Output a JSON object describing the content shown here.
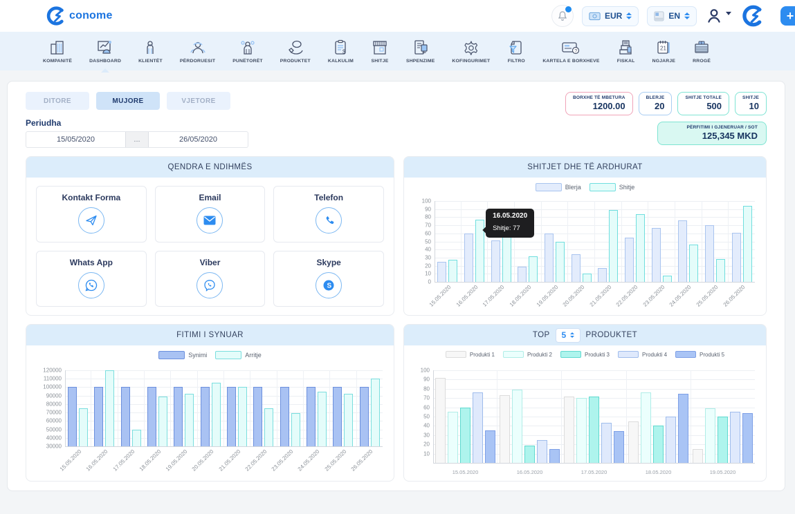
{
  "header": {
    "brand": "conome",
    "currency": "EUR",
    "language": "EN",
    "add_button": "+"
  },
  "nav": {
    "items": [
      {
        "label": "KOMPANITË",
        "icon": "building"
      },
      {
        "label": "DASHBOARD",
        "icon": "dashboard",
        "active": true
      },
      {
        "label": "KLIENTËT",
        "icon": "client"
      },
      {
        "label": "PËRDORUESIT",
        "icon": "users"
      },
      {
        "label": "PUNËTORËT",
        "icon": "workers"
      },
      {
        "label": "PRODUKTET",
        "icon": "products"
      },
      {
        "label": "KALKULIM",
        "icon": "calculation"
      },
      {
        "label": "SHITJE",
        "icon": "shop"
      },
      {
        "label": "SHPENZIME",
        "icon": "expenses"
      },
      {
        "label": "KOFINGURIMET",
        "icon": "gear"
      },
      {
        "label": "FILTRO",
        "icon": "filter"
      },
      {
        "label": "KARTELA E BORXHEVE",
        "icon": "debt-card"
      },
      {
        "label": "FISKAL",
        "icon": "fiscal"
      },
      {
        "label": "NGJARJE",
        "icon": "calendar"
      },
      {
        "label": "RROGË",
        "icon": "salary"
      }
    ]
  },
  "filters": {
    "tabs": [
      {
        "label": "DITORE",
        "active": false
      },
      {
        "label": "MUJORE",
        "active": true
      },
      {
        "label": "VJETORE",
        "active": false
      }
    ],
    "period_label": "Periudha",
    "date_from": "15/05/2020",
    "date_to": "26/05/2020",
    "range_button": "..."
  },
  "stats": {
    "boxes": [
      {
        "label": "BORXHE TË MBETURA",
        "value": "1200.00",
        "color": "#f0a3b8"
      },
      {
        "label": "BLERJE",
        "value": "20",
        "color": "#a9cdf2"
      },
      {
        "label": "SHITJE TOTALE",
        "value": "500",
        "color": "#7fe4d4"
      },
      {
        "label": "SHITJE",
        "value": "10",
        "color": "#7fe4d4"
      }
    ],
    "profit": {
      "label": "PËRFITIMI I GJENERUAR / SOT",
      "value": "125,345 MKD"
    }
  },
  "help_center": {
    "title": "QENDRA E NDIHMËS",
    "items": [
      {
        "label": "Kontakt Forma",
        "icon": "send"
      },
      {
        "label": "Email",
        "icon": "email"
      },
      {
        "label": "Telefon",
        "icon": "phone"
      },
      {
        "label": "Whats App",
        "icon": "whatsapp"
      },
      {
        "label": "Viber",
        "icon": "viber"
      },
      {
        "label": "Skype",
        "icon": "skype"
      }
    ]
  },
  "chart_data": [
    {
      "type": "bar",
      "title": "SHITJET DHE TË ARDHURAT",
      "categories": [
        "15.05.2020",
        "16.05.2020",
        "17.05.2020",
        "18.05.2020",
        "19.05.2020",
        "20.05.2020",
        "21.05.2020",
        "22.05.2020",
        "23.05.2020",
        "24.05.2020",
        "25.05.2020",
        "26.05.2020"
      ],
      "series": [
        {
          "name": "Blerja",
          "fill": "#e3ecfc",
          "border": "#a9c4ef",
          "values": [
            25,
            60,
            51,
            19,
            60,
            34,
            17,
            55,
            67,
            76,
            70,
            61
          ]
        },
        {
          "name": "Shitje",
          "fill": "#e4fcfa",
          "border": "#6fdede",
          "values": [
            27,
            77,
            59,
            32,
            50,
            10,
            89,
            84,
            8,
            46,
            28,
            94
          ]
        }
      ],
      "ylim": [
        0,
        100
      ],
      "ytick_step": 10,
      "ytick_min": 0,
      "legend_position": "top",
      "grid": true,
      "tooltip": {
        "title": "16.05.2020",
        "text": "Shitje: 77"
      }
    },
    {
      "type": "bar",
      "title": "FITIMI I SYNUAR",
      "categories": [
        "15.05.2020",
        "16.05.2020",
        "17.05.2020",
        "18.05.2020",
        "19.05.2020",
        "20.05.2020",
        "21.05.2020",
        "22.05.2020",
        "23.05.2020",
        "24.05.2020",
        "25.05.2020",
        "26.05.2020"
      ],
      "series": [
        {
          "name": "Synimi",
          "fill": "#a9c2f3",
          "border": "#6b8fdd",
          "values": [
            100000,
            100000,
            100000,
            100000,
            100000,
            100000,
            100000,
            100000,
            100000,
            100000,
            100000,
            100000
          ]
        },
        {
          "name": "Arritje",
          "fill": "#e4fcfa",
          "border": "#7adede",
          "values": [
            75000,
            120000,
            50000,
            89000,
            92000,
            105000,
            100000,
            75000,
            69000,
            95000,
            92000,
            110000
          ]
        }
      ],
      "ylim": [
        30000,
        120000
      ],
      "ytick_step": 10000,
      "ytick_min": 30000,
      "legend_position": "top",
      "grid": true
    },
    {
      "type": "bar",
      "title_prefix": "TOP",
      "top_n": "5",
      "title_suffix": "PRODUKTET",
      "categories": [
        "15.05.2020",
        "16.05.2020",
        "17.05.2020",
        "18.05.2020",
        "19.05.2020"
      ],
      "series": [
        {
          "name": "Produkti 1",
          "fill": "#f7f7f7",
          "border": "#dcdcdc",
          "values": [
            92,
            73,
            72,
            45,
            15
          ]
        },
        {
          "name": "Produkti 2",
          "fill": "#ebfffd",
          "border": "#b0ede7",
          "values": [
            55,
            79,
            70,
            76,
            59
          ]
        },
        {
          "name": "Produkti 3",
          "fill": "#aef4ed",
          "border": "#5fd9cf",
          "values": [
            60,
            19,
            72,
            40,
            50
          ]
        },
        {
          "name": "Produkti 4",
          "fill": "#dfe9fc",
          "border": "#9fbcec",
          "values": [
            76,
            25,
            43,
            50,
            55
          ]
        },
        {
          "name": "Produkti 5",
          "fill": "#a9c4f5",
          "border": "#7d9fe6",
          "values": [
            35,
            15,
            34,
            75,
            54
          ]
        }
      ],
      "ylim": [
        0,
        100
      ],
      "ytick_step": 10,
      "ytick_min": 10,
      "legend_position": "top",
      "grid": true
    }
  ]
}
